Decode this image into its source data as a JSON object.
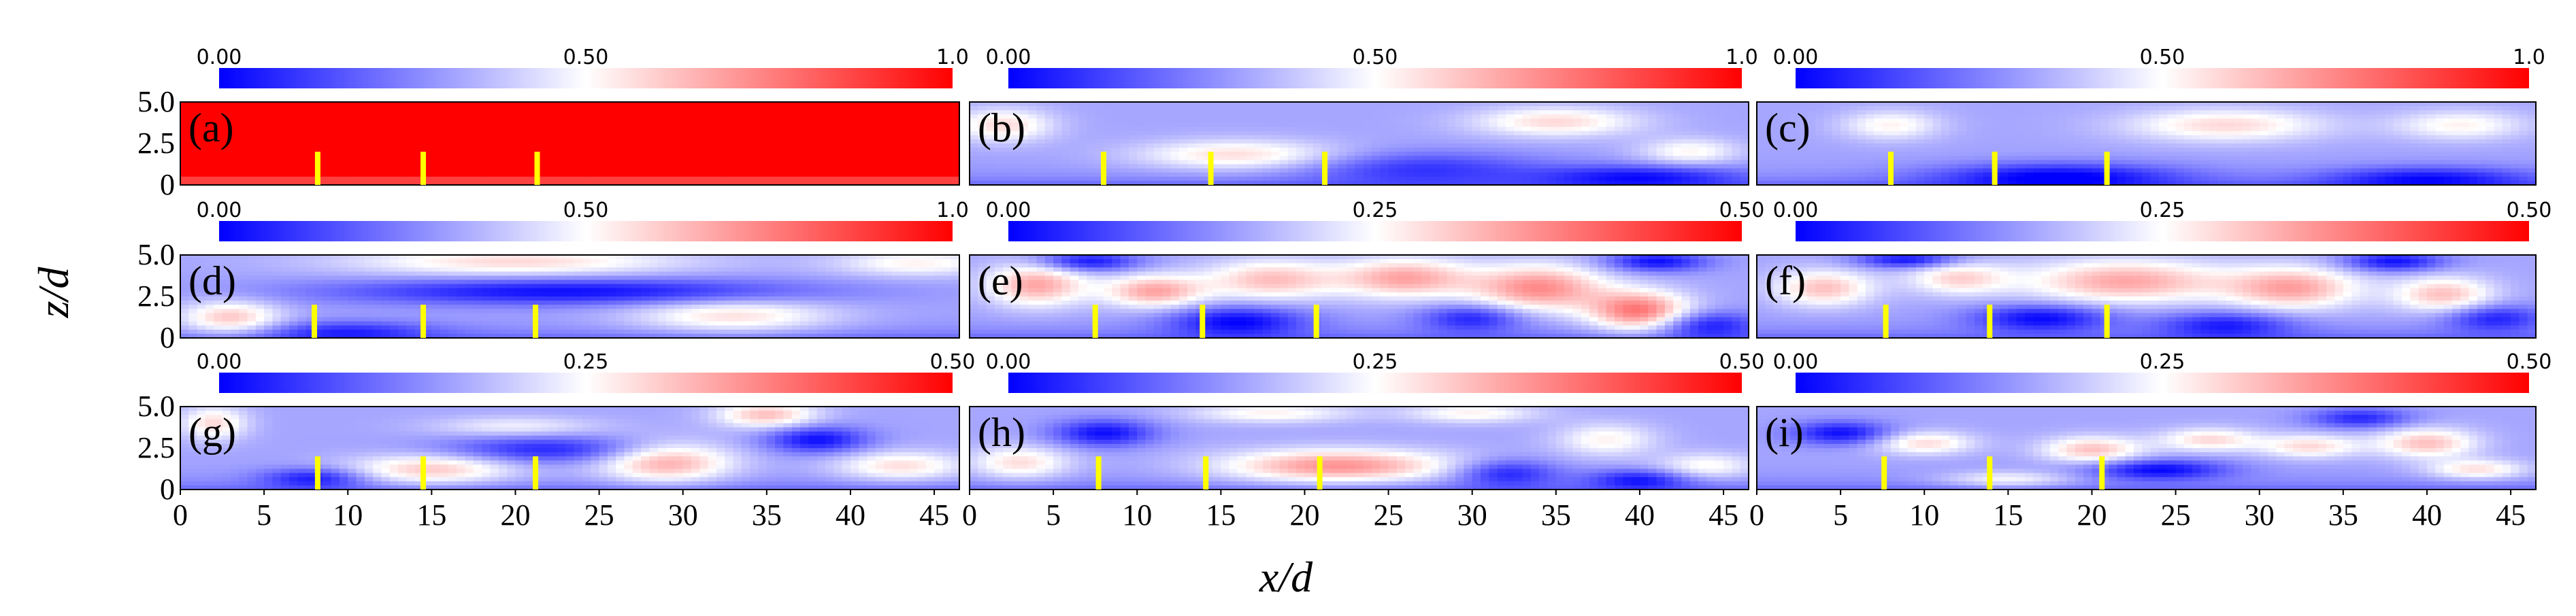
{
  "chart_data": {
    "type": "heatmap",
    "layout": "3x3 grid of field contour panels",
    "xlabel": "x/d",
    "ylabel": "z/d",
    "x_ticks": [
      0,
      5,
      10,
      15,
      20,
      25,
      30,
      35,
      40,
      45
    ],
    "y_ticks": [
      0,
      2.5,
      5.0
    ],
    "y_tick_labels": [
      "0",
      "2.5",
      "5.0"
    ],
    "xlim": [
      0,
      46.5
    ],
    "ylim": [
      0,
      5.0
    ],
    "colormap": [
      "#0000ff",
      "#ffffff",
      "#ff0000"
    ],
    "marker_color": "#ffff00",
    "marker_height": [
      0,
      2.0
    ],
    "panels": [
      {
        "label": "(a)",
        "cbar_min": "0.00",
        "cbar_mid": "0.50",
        "cbar_max": "1.0",
        "markers_x": [
          8.2,
          14.5,
          21.3
        ],
        "blobs": []
      },
      {
        "label": "(b)",
        "cbar_min": "0.00",
        "cbar_mid": "0.50",
        "cbar_max": "1.0",
        "markers_x": [
          8.0,
          14.4,
          21.2
        ],
        "blobs": [
          [
            2,
            3.6,
            3,
            1,
            0.5
          ],
          [
            16,
            1.8,
            6,
            0.9,
            0.5
          ],
          [
            35,
            3.8,
            5,
            0.9,
            0.5
          ],
          [
            43,
            2.0,
            3,
            0.8,
            0.4
          ],
          [
            27,
            1.0,
            7,
            1.0,
            -0.4
          ],
          [
            40,
            0.5,
            6,
            0.7,
            -0.5
          ]
        ]
      },
      {
        "label": "(c)",
        "cbar_min": "0.00",
        "cbar_mid": "0.50",
        "cbar_max": "1.0",
        "markers_x": [
          8.0,
          14.2,
          20.9
        ],
        "blobs": [
          [
            8,
            3.6,
            3,
            0.9,
            0.4
          ],
          [
            28,
            3.6,
            6,
            1.0,
            0.5
          ],
          [
            42,
            3.6,
            4,
            0.9,
            0.4
          ],
          [
            18,
            0.5,
            7,
            0.8,
            -0.6
          ],
          [
            40,
            0.4,
            6,
            0.7,
            -0.5
          ]
        ]
      },
      {
        "label": "(d)",
        "cbar_min": "0.00",
        "cbar_mid": "0.50",
        "cbar_max": "1.0",
        "markers_x": [
          8.0,
          14.5,
          21.2
        ],
        "blobs": [
          [
            3,
            1.2,
            3,
            1.0,
            0.6
          ],
          [
            20,
            4.6,
            10,
            0.9,
            0.5
          ],
          [
            33,
            1.3,
            6,
            1.0,
            0.5
          ],
          [
            44,
            4.5,
            5,
            0.8,
            0.4
          ],
          [
            23,
            2.8,
            14,
            0.8,
            -0.6
          ],
          [
            10,
            0.4,
            5,
            0.6,
            -0.4
          ]
        ]
      },
      {
        "label": "(e)",
        "cbar_min": "0.00",
        "cbar_mid": "0.25",
        "cbar_max": "0.50",
        "markers_x": [
          7.5,
          13.9,
          20.7
        ],
        "blobs": [
          [
            4,
            3.2,
            3,
            1.3,
            0.7
          ],
          [
            11,
            2.8,
            3,
            1.0,
            0.7
          ],
          [
            18,
            3.5,
            4,
            1.2,
            0.6
          ],
          [
            26,
            3.6,
            4,
            1.2,
            0.7
          ],
          [
            34,
            3.0,
            4,
            1.4,
            0.8
          ],
          [
            40,
            1.6,
            3,
            1.2,
            0.9
          ],
          [
            7,
            4.6,
            3,
            0.6,
            -0.6
          ],
          [
            16,
            1.0,
            4,
            0.9,
            -0.6
          ],
          [
            30,
            1.2,
            3,
            0.8,
            -0.5
          ],
          [
            41,
            4.6,
            3,
            0.6,
            -0.6
          ],
          [
            44,
            0.8,
            3,
            0.8,
            -0.5
          ]
        ]
      },
      {
        "label": "(f)",
        "cbar_min": "0.00",
        "cbar_mid": "0.25",
        "cbar_max": "0.50",
        "markers_x": [
          7.7,
          13.9,
          20.9
        ],
        "blobs": [
          [
            4,
            3.0,
            3,
            1.1,
            0.6
          ],
          [
            12,
            3.6,
            3,
            1.0,
            0.5
          ],
          [
            22,
            3.4,
            6,
            1.3,
            0.7
          ],
          [
            32,
            3.0,
            4,
            1.3,
            0.7
          ],
          [
            41,
            2.6,
            3,
            1.1,
            0.6
          ],
          [
            9,
            4.7,
            3,
            0.5,
            -0.6
          ],
          [
            17,
            1.2,
            4,
            0.8,
            -0.6
          ],
          [
            28,
            0.8,
            4,
            0.8,
            -0.5
          ],
          [
            38,
            4.6,
            3,
            0.6,
            -0.6
          ],
          [
            44,
            1.2,
            3,
            0.8,
            -0.5
          ]
        ]
      },
      {
        "label": "(g)",
        "cbar_min": "0.00",
        "cbar_mid": "0.25",
        "cbar_max": "0.50",
        "markers_x": [
          8.2,
          14.5,
          21.2
        ],
        "blobs": [
          [
            2,
            4.0,
            2,
            1.0,
            0.5
          ],
          [
            15,
            1.2,
            5,
            0.9,
            0.6
          ],
          [
            29,
            1.6,
            4,
            1.2,
            0.7
          ],
          [
            35,
            4.5,
            3,
            0.8,
            0.6
          ],
          [
            43,
            1.4,
            4,
            0.9,
            0.5
          ],
          [
            20,
            3.8,
            5,
            0.6,
            0.3
          ],
          [
            8,
            0.7,
            3,
            0.6,
            -0.5
          ],
          [
            22,
            2.4,
            6,
            0.8,
            -0.5
          ],
          [
            38,
            3.0,
            3,
            0.8,
            -0.6
          ]
        ]
      },
      {
        "label": "(h)",
        "cbar_min": "0.00",
        "cbar_mid": "0.25",
        "cbar_max": "0.50",
        "markers_x": [
          7.7,
          14.1,
          20.9
        ],
        "blobs": [
          [
            3,
            1.6,
            3,
            1.0,
            0.5
          ],
          [
            22,
            1.4,
            7,
            1.0,
            0.8
          ],
          [
            18,
            4.6,
            5,
            0.6,
            0.4
          ],
          [
            30,
            4.6,
            4,
            0.6,
            0.4
          ],
          [
            38,
            3.0,
            3,
            1.0,
            0.4
          ],
          [
            44,
            1.4,
            3,
            0.8,
            0.4
          ],
          [
            8,
            3.4,
            3,
            0.8,
            -0.6
          ],
          [
            32,
            1.0,
            3,
            0.8,
            -0.5
          ],
          [
            40,
            0.6,
            3,
            0.6,
            -0.5
          ]
        ]
      },
      {
        "label": "(i)",
        "cbar_min": "0.00",
        "cbar_mid": "0.25",
        "cbar_max": "0.50",
        "markers_x": [
          7.6,
          13.9,
          20.6
        ],
        "blobs": [
          [
            10,
            2.8,
            3,
            0.7,
            0.5
          ],
          [
            20,
            2.4,
            3,
            0.8,
            0.6
          ],
          [
            27,
            3.0,
            3,
            0.7,
            0.5
          ],
          [
            33,
            2.6,
            3,
            0.7,
            0.5
          ],
          [
            40,
            2.8,
            3,
            0.9,
            0.6
          ],
          [
            43,
            1.2,
            3,
            0.6,
            0.5
          ],
          [
            15,
            0.6,
            4,
            0.5,
            0.4
          ],
          [
            5,
            3.4,
            3,
            0.7,
            -0.6
          ],
          [
            24,
            1.2,
            4,
            0.6,
            -0.6
          ],
          [
            36,
            4.3,
            3,
            0.6,
            -0.5
          ]
        ]
      }
    ]
  }
}
